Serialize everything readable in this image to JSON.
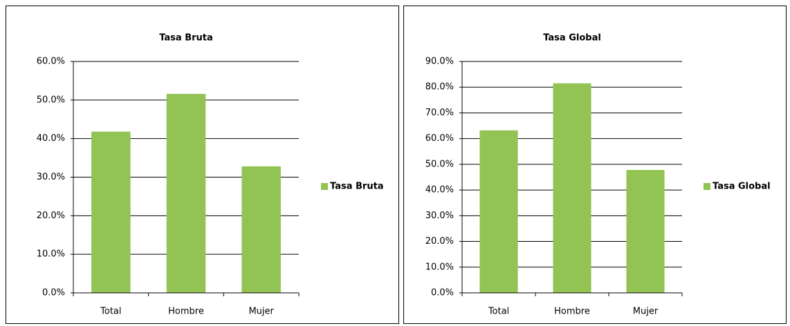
{
  "chart_data": [
    {
      "type": "bar",
      "title": "Tasa Bruta",
      "categories": [
        "Total",
        "Hombre",
        "Mujer"
      ],
      "series": [
        {
          "name": "Tasa Bruta",
          "color": "#92c353",
          "values": [
            41.8,
            51.6,
            32.8
          ]
        }
      ],
      "ylim": [
        0,
        60
      ],
      "yticks": [
        {
          "value": 0,
          "label": "0.0%"
        },
        {
          "value": 10,
          "label": "10.0%"
        },
        {
          "value": 20,
          "label": "20.0%"
        },
        {
          "value": 30,
          "label": "30.0%"
        },
        {
          "value": 40,
          "label": "40.0%"
        },
        {
          "value": 50,
          "label": "50.0%"
        },
        {
          "value": 60,
          "label": "60.0%"
        }
      ],
      "grid": true,
      "legend": "right"
    },
    {
      "type": "bar",
      "title": "Tasa Global",
      "categories": [
        "Total",
        "Hombre",
        "Mujer"
      ],
      "series": [
        {
          "name": "Tasa Global",
          "color": "#92c353",
          "values": [
            63.2,
            81.5,
            47.8
          ]
        }
      ],
      "ylim": [
        0,
        90
      ],
      "yticks": [
        {
          "value": 0,
          "label": "0.0%"
        },
        {
          "value": 10,
          "label": "10.0%"
        },
        {
          "value": 20,
          "label": "20.0%"
        },
        {
          "value": 30,
          "label": "30.0%"
        },
        {
          "value": 40,
          "label": "40.0%"
        },
        {
          "value": 50,
          "label": "50.0%"
        },
        {
          "value": 60,
          "label": "60.0%"
        },
        {
          "value": 70,
          "label": "70.0%"
        },
        {
          "value": 80,
          "label": "80.0%"
        },
        {
          "value": 90,
          "label": "90.0%"
        }
      ],
      "grid": true,
      "legend": "right"
    }
  ]
}
